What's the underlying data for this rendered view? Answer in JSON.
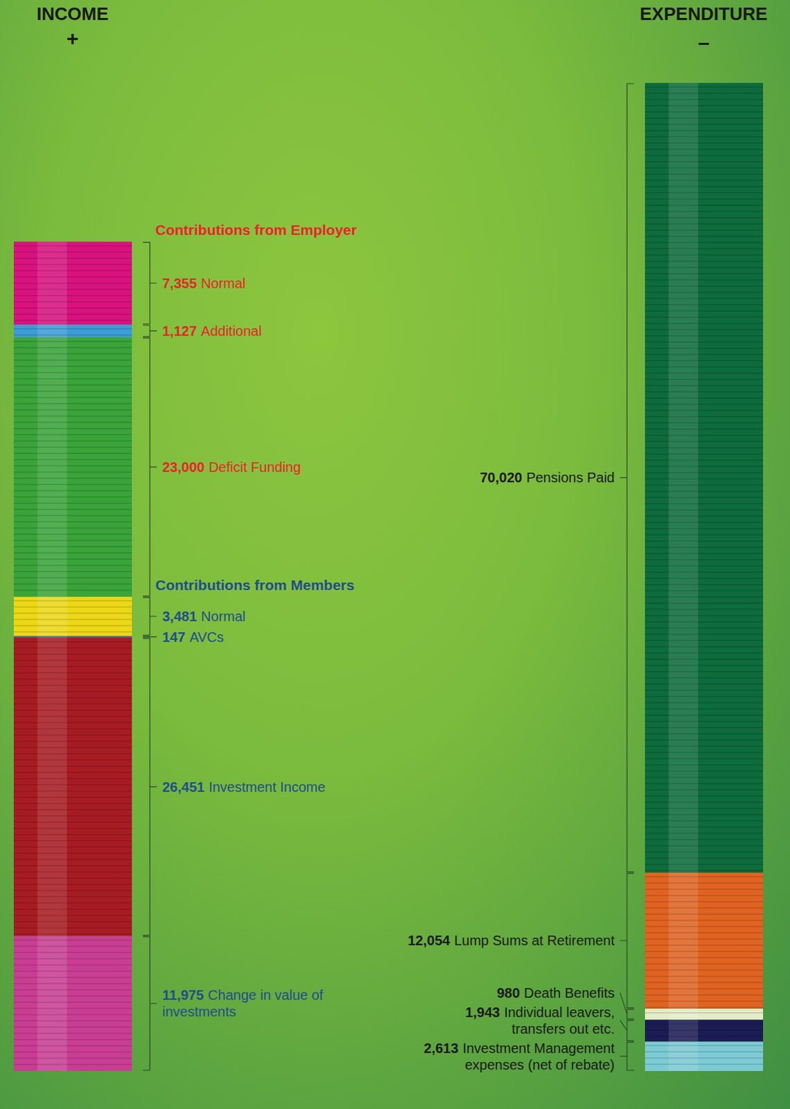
{
  "chart_data": [
    {
      "type": "bar",
      "title": "INCOME",
      "subtitle": "+",
      "stacked": true,
      "data_labels": true,
      "tick_labels": false,
      "series": [
        {
          "name": "Normal",
          "group": "Contributions from Employer",
          "color": "#d8127f",
          "values": [
            7355
          ],
          "value_labels": [
            "7,355"
          ]
        },
        {
          "name": "Additional",
          "group": "Contributions from Employer",
          "color": "#3d9dd6",
          "values": [
            1127
          ],
          "value_labels": [
            "1,127"
          ]
        },
        {
          "name": "Deficit Funding",
          "group": "Contributions from Employer",
          "color": "#3aa33a",
          "values": [
            23000
          ],
          "value_labels": [
            "23,000"
          ]
        },
        {
          "name": "Normal",
          "group": "Contributions from Members",
          "color": "#ecd816",
          "values": [
            3481
          ],
          "value_labels": [
            "3,481"
          ]
        },
        {
          "name": "AVCs",
          "group": "Contributions from Members",
          "color": "#4b539e",
          "values": [
            147
          ],
          "value_labels": [
            "147"
          ]
        },
        {
          "name": "Investment Income",
          "color": "#a71c22",
          "values": [
            26451
          ],
          "value_labels": [
            "26,451"
          ]
        },
        {
          "name": "Change in value of investments",
          "color": "#c93e93",
          "values": [
            11975
          ],
          "value_labels": [
            "11,975"
          ]
        }
      ]
    },
    {
      "type": "bar",
      "title": "EXPENDITURE",
      "subtitle": "–",
      "stacked": true,
      "data_labels": true,
      "tick_labels": false,
      "series": [
        {
          "name": "Pensions Paid",
          "color": "#0d6b3c",
          "values": [
            70020
          ],
          "value_labels": [
            "70,020"
          ]
        },
        {
          "name": "Lump Sums at Retirement",
          "color": "#e06321",
          "values": [
            12054
          ],
          "value_labels": [
            "12,054"
          ]
        },
        {
          "name": "Death Benefits",
          "color": "#e4ecc6",
          "values": [
            980
          ],
          "value_labels": [
            "980"
          ]
        },
        {
          "name": "Individual leavers, transfers out etc.",
          "color": "#1c1c54",
          "values": [
            1943
          ],
          "value_labels": [
            "1,943"
          ]
        },
        {
          "name": "Investment Management expenses (net of rebate)",
          "color": "#7ccad4",
          "values": [
            2613
          ],
          "value_labels": [
            "2,613"
          ]
        }
      ]
    }
  ]
}
